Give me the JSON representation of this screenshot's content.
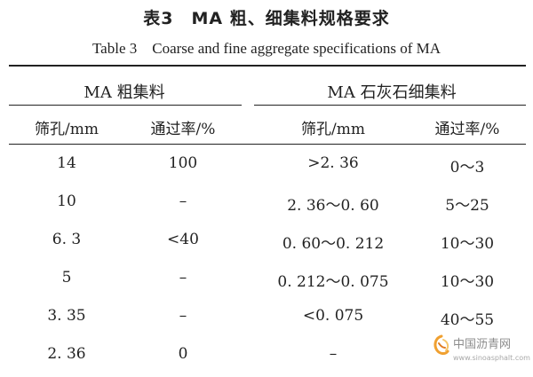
{
  "table": {
    "title_cn": "表3　MA 粗、细集料规格要求",
    "title_en": "Table 3　Coarse and fine aggregate specifications of MA",
    "groups": [
      "MA 粗集料",
      "MA 石灰石细集料"
    ],
    "headers": [
      "筛孔/mm",
      "通过率/%",
      "筛孔/mm",
      "通过率/%"
    ],
    "rows": [
      [
        "14",
        "100",
        ">2. 36",
        "0～3"
      ],
      [
        "10",
        "–",
        "2. 36～0. 60",
        "5～25"
      ],
      [
        "6. 3",
        "<40",
        "0. 60～0. 212",
        "10～30"
      ],
      [
        "5",
        "–",
        "0. 212～0. 075",
        "10～30"
      ],
      [
        "3. 35",
        "–",
        "<0. 075",
        "40～55"
      ],
      [
        "2. 36",
        "0",
        "–",
        ""
      ]
    ]
  },
  "watermark": {
    "name": "中国沥青网",
    "url": "www.sinoasphalt.com",
    "logo_icon": "swirl-logo-icon"
  }
}
